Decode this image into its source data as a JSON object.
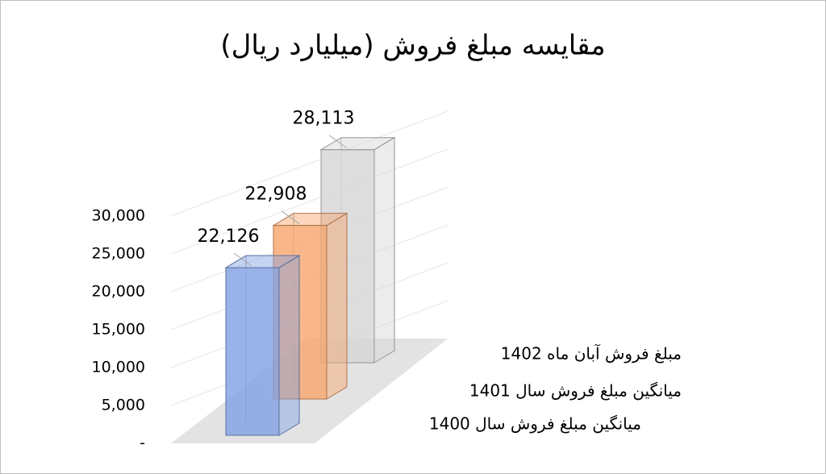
{
  "chart_data": {
    "type": "bar3d",
    "title": "مقایسه مبلغ فروش (میلیارد ریال)",
    "series": [
      {
        "name": "میانگین مبلغ فروش سال 1400",
        "color": "#7fa0e4",
        "values": [
          22126
        ],
        "value_labels": [
          "22,126"
        ]
      },
      {
        "name": "میانگین مبلغ فروش سال 1401",
        "color": "#f7a56b",
        "values": [
          22908
        ],
        "value_labels": [
          "22,908"
        ]
      },
      {
        "name": "مبلغ فروش آبان ماه 1402",
        "color": "#d4d4d4",
        "values": [
          28113
        ],
        "value_labels": [
          "28,113"
        ]
      }
    ],
    "ylim": [
      0,
      30000
    ],
    "yticks": [
      {
        "value": 0,
        "label": "-"
      },
      {
        "value": 5000,
        "label": "5,000"
      },
      {
        "value": 10000,
        "label": "10,000"
      },
      {
        "value": 15000,
        "label": "15,000"
      },
      {
        "value": 20000,
        "label": "20,000"
      },
      {
        "value": 25000,
        "label": "25,000"
      },
      {
        "value": 30000,
        "label": "30,000"
      }
    ],
    "grid": true
  }
}
